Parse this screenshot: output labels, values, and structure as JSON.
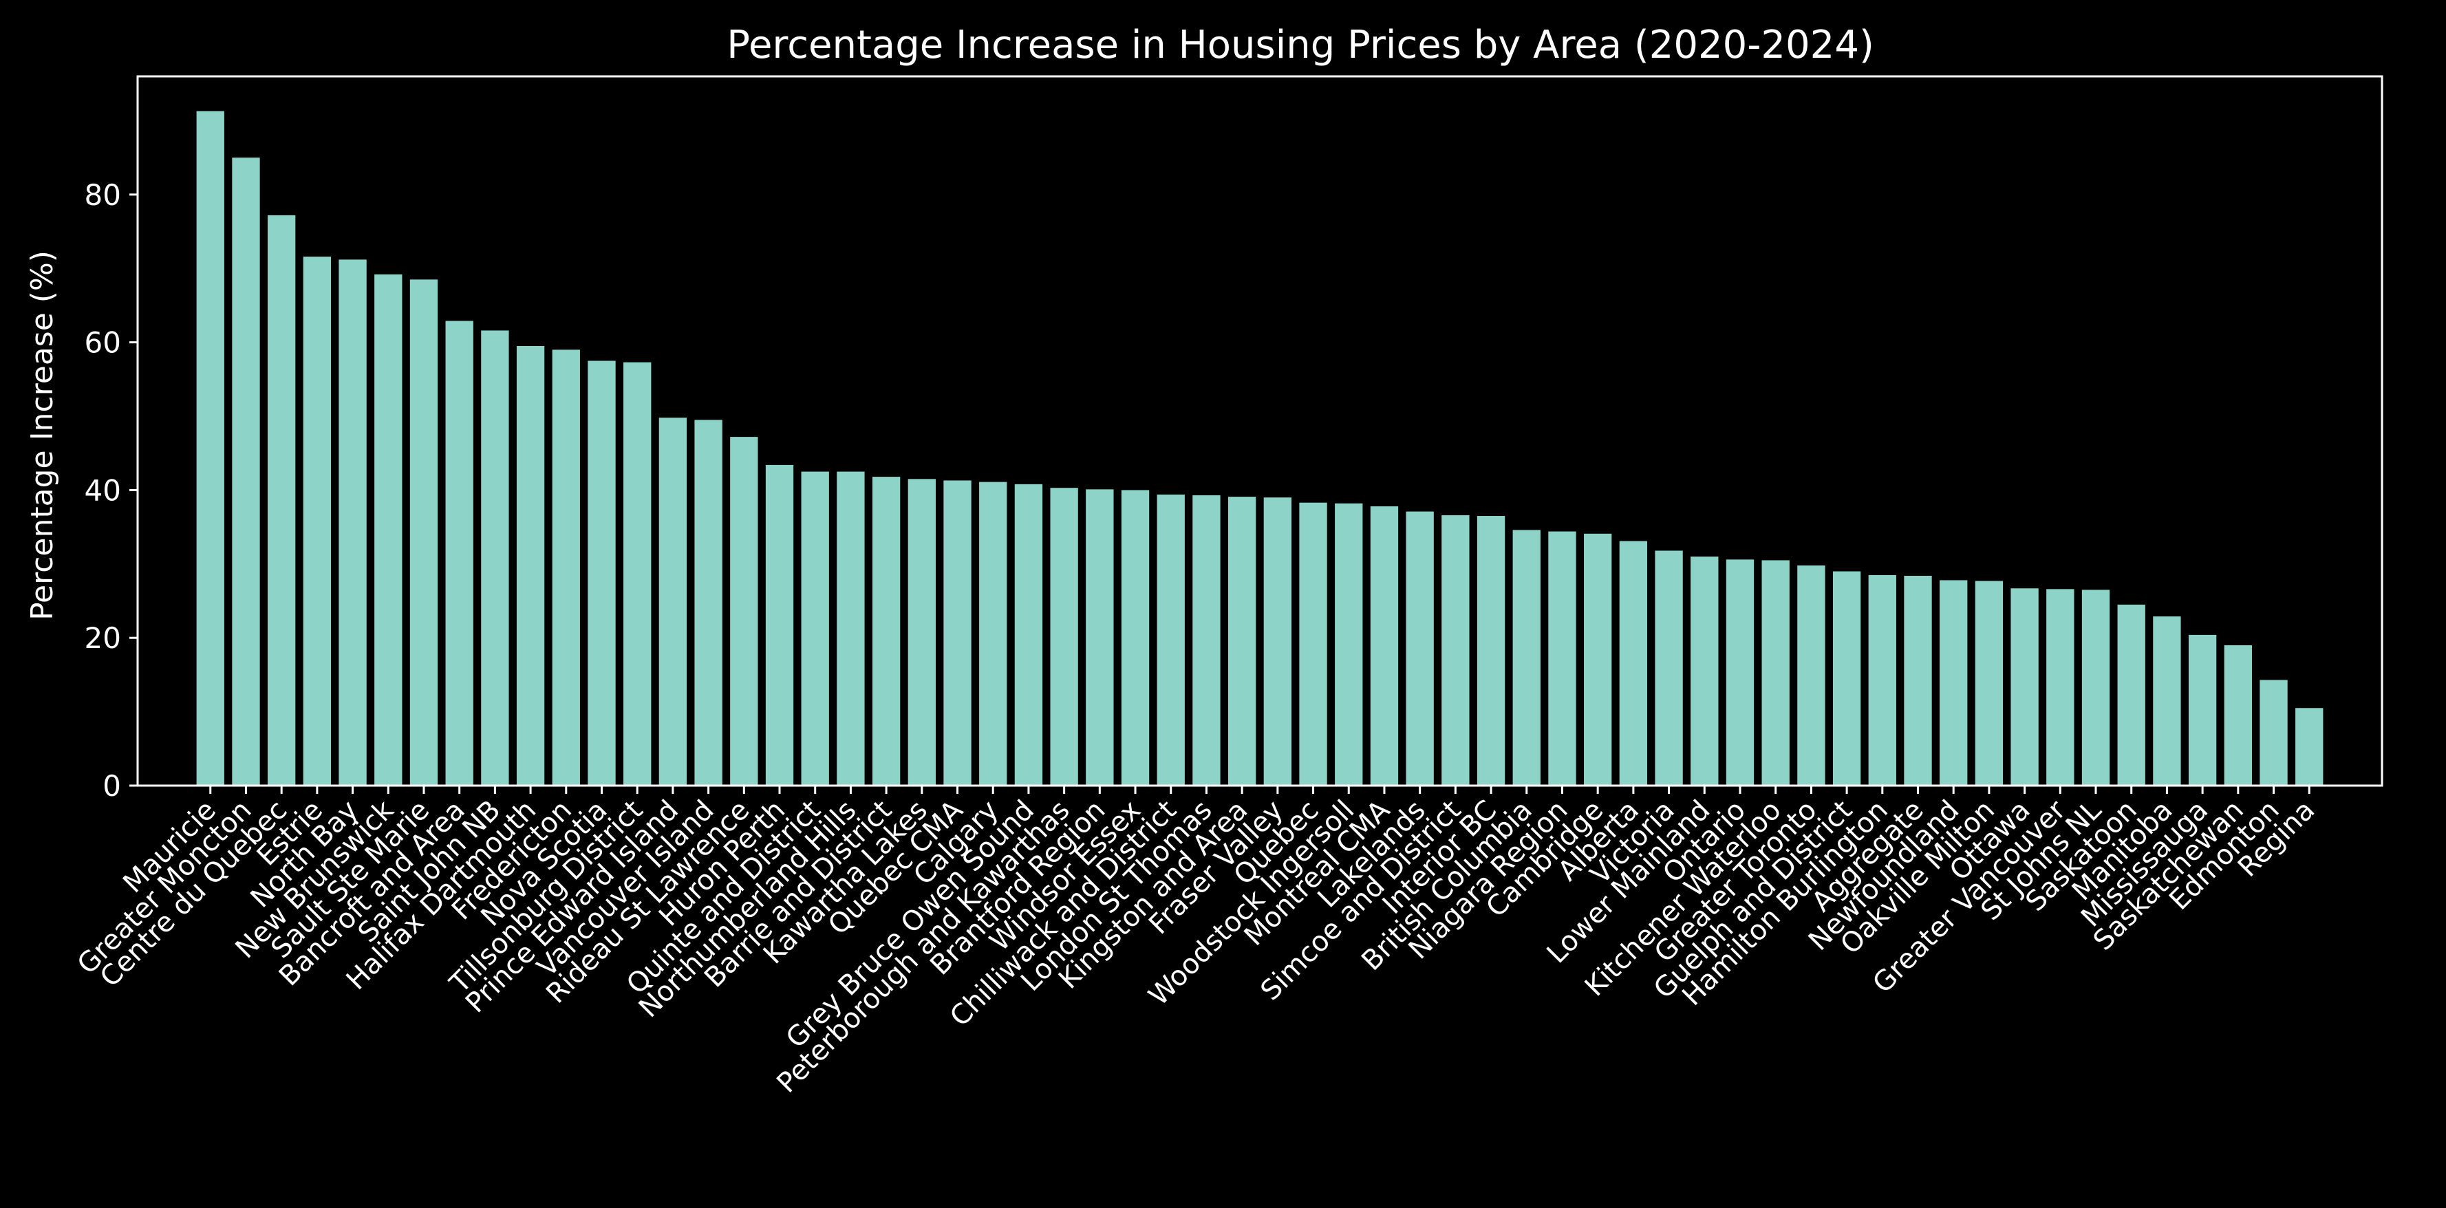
{
  "chart_data": {
    "type": "bar",
    "title": "Percentage Increase in Housing Prices by Area (2020-2024)",
    "xlabel": "",
    "ylabel": "Percentage Increase (%)",
    "ylim": [
      0,
      96
    ],
    "yticks": [
      0,
      20,
      40,
      60,
      80
    ],
    "grid": false,
    "colors": {
      "bar": "#8dd3c7",
      "background": "#000000",
      "axis": "#ffffff",
      "text": "#ffffff"
    },
    "categories": [
      "Mauricie",
      "Greater Moncton",
      "Centre du Quebec",
      "Estrie",
      "North Bay",
      "New Brunswick",
      "Sault Ste Marie",
      "Bancroft and Area",
      "Saint John NB",
      "Halifax Dartmouth",
      "Fredericton",
      "Nova Scotia",
      "Tillsonburg District",
      "Prince Edward Island",
      "Vancouver Island",
      "Rideau St Lawrence",
      "Huron Perth",
      "Quinte and District",
      "Northumberland Hills",
      "Barrie and District",
      "Kawartha Lakes",
      "Quebec CMA",
      "Calgary",
      "Grey Bruce Owen Sound",
      "Peterborough and Kawarthas",
      "Brantford Region",
      "Windsor Essex",
      "Chilliwack and District",
      "London St Thomas",
      "Kingston and Area",
      "Fraser Valley",
      "Quebec",
      "Woodstock Ingersoll",
      "Montreal CMA",
      "Lakelands",
      "Simcoe and District",
      "Interior BC",
      "British Columbia",
      "Niagara Region",
      "Cambridge",
      "Alberta",
      "Victoria",
      "Lower Mainland",
      "Ontario",
      "Kitchener Waterloo",
      "Greater Toronto",
      "Guelph and District",
      "Hamilton Burlington",
      "Aggregate",
      "Newfoundland",
      "Oakville Milton",
      "Ottawa",
      "Greater Vancouver",
      "St Johns NL",
      "Saskatoon",
      "Manitoba",
      "Mississauga",
      "Saskatchewan",
      "Edmonton",
      "Regina"
    ],
    "values": [
      91.3,
      85.0,
      77.2,
      71.6,
      71.2,
      69.2,
      68.5,
      62.9,
      61.6,
      59.5,
      59.0,
      57.5,
      57.3,
      49.8,
      49.5,
      47.2,
      43.4,
      42.5,
      42.5,
      41.8,
      41.5,
      41.3,
      41.1,
      40.8,
      40.3,
      40.1,
      40.0,
      39.4,
      39.3,
      39.1,
      39.0,
      38.3,
      38.2,
      37.8,
      37.1,
      36.6,
      36.5,
      34.6,
      34.4,
      34.1,
      33.1,
      31.8,
      31.0,
      30.6,
      30.5,
      29.8,
      29.0,
      28.5,
      28.4,
      27.8,
      27.7,
      26.7,
      26.6,
      26.5,
      24.5,
      22.9,
      20.4,
      19.0,
      14.3,
      10.5
    ]
  }
}
